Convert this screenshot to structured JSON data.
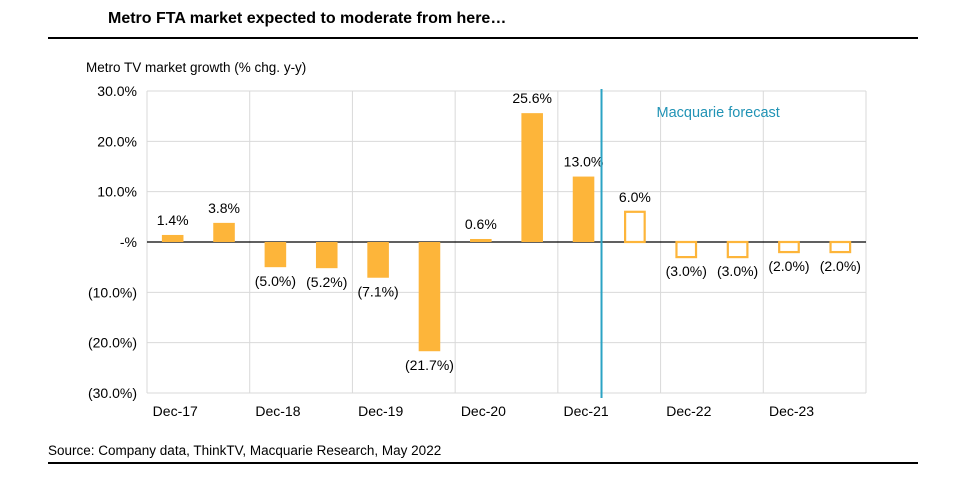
{
  "header": {
    "title": "Metro FTA market expected to moderate from here…"
  },
  "footer": {
    "source": "Source: Company data, ThinkTV, Macquarie Research, May 2022"
  },
  "colors": {
    "bar": "#FDB53A",
    "forecast_line": "#2BA3C4",
    "forecast_text": "#2193B5",
    "grid": "#D9D9D9"
  },
  "chart_data": {
    "type": "bar",
    "title": "Metro FTA market expected to moderate from here…",
    "ylabel": "Metro TV market growth (% chg. y-y)",
    "xlabel": "",
    "ylim": [
      -30,
      30
    ],
    "yticks": [
      30,
      20,
      10,
      0,
      -10,
      -20,
      -30
    ],
    "ytick_labels": [
      "30.0%",
      "20.0%",
      "10.0%",
      "-%",
      "(10.0%)",
      "(20.0%)",
      "(30.0%)"
    ],
    "xtick_labels": [
      "Dec-17",
      "Dec-18",
      "Dec-19",
      "Dec-20",
      "Dec-21",
      "Dec-22",
      "Dec-23"
    ],
    "grid": true,
    "annotation": "Macquarie forecast",
    "values": [
      1.4,
      3.8,
      -5.0,
      -5.2,
      -7.1,
      -21.7,
      0.6,
      25.6,
      13.0,
      6.0,
      -3.0,
      -3.0,
      -2.0,
      -2.0
    ],
    "data_labels": [
      "1.4%",
      "3.8%",
      "(5.0%)",
      "(5.2%)",
      "(7.1%)",
      "(21.7%)",
      "0.6%",
      "25.6%",
      "13.0%",
      "6.0%",
      "(3.0%)",
      "(3.0%)",
      "(2.0%)",
      "(2.0%)"
    ],
    "forecast": [
      false,
      false,
      false,
      false,
      false,
      false,
      false,
      false,
      false,
      true,
      true,
      true,
      true,
      true
    ]
  }
}
